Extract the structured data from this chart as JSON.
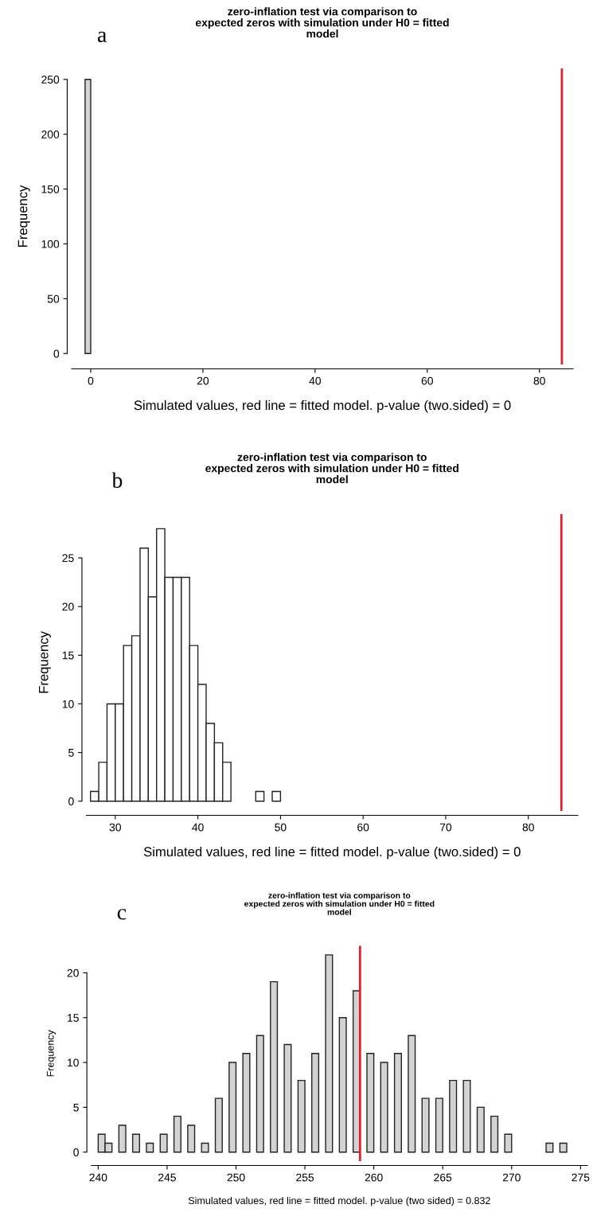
{
  "chart_data": [
    {
      "type": "histogram",
      "title": "zero-inflation test via comparison to\nexpected zeros with simulation under H0 = fitted\nmodel",
      "xlabel": "Simulated values, red line = fitted model. p-value (two.sided) = 0",
      "ylabel": "Frequency",
      "annotations": [
        "a"
      ],
      "bins": [
        -1,
        0
      ],
      "values": [
        250
      ],
      "color": "#d3d3d3",
      "xlim": [
        -3.4,
        86
      ],
      "xticks": [
        0,
        20,
        40,
        60,
        80
      ],
      "ylim": [
        -10,
        260
      ],
      "yticks": [
        0,
        50,
        100,
        150,
        200,
        250
      ],
      "grid": false,
      "ref_lines": [
        {
          "axis": "x",
          "value": 84,
          "color": "#e0202a"
        }
      ]
    },
    {
      "type": "histogram",
      "title": "zero-inflation test via comparison to\nexpected zeros with simulation under H0 = fitted\nmodel",
      "xlabel": "Simulated values, red line = fitted model. p-value (two.sided) = 0",
      "ylabel": "Frequency",
      "annotations": [
        "b"
      ],
      "bins": [
        27,
        28,
        29,
        30,
        31,
        32,
        33,
        34,
        35,
        36,
        37,
        38,
        39,
        40,
        41,
        42,
        43,
        44,
        45,
        46,
        47,
        48,
        49,
        50
      ],
      "values": [
        1,
        4,
        10,
        10,
        16,
        17,
        26,
        21,
        28,
        23,
        23,
        23,
        16,
        12,
        8,
        6,
        4,
        0,
        0,
        0,
        1,
        0,
        1
      ],
      "color": "#ffffff",
      "xlim": [
        26.5,
        86
      ],
      "xticks": [
        30,
        40,
        50,
        60,
        70,
        80
      ],
      "ylim": [
        -1,
        29.5
      ],
      "yticks": [
        0,
        5,
        10,
        15,
        20,
        25
      ],
      "grid": false,
      "ref_lines": [
        {
          "axis": "x",
          "value": 84,
          "color": "#e0202a"
        }
      ]
    },
    {
      "type": "histogram",
      "title": "zero-inflation test via comparison to\nexpected zeros with simulation under H0 = fitted\nmodel",
      "xlabel": "Simulated values, red line = fitted model. p-value (two sided) = 0.832",
      "ylabel": "Frequency",
      "annotations": [
        "c"
      ],
      "bins": [
        240,
        240.5,
        241,
        241.5,
        242,
        242.5,
        243,
        243.5,
        244,
        244.5,
        245,
        245.5,
        246,
        246.5,
        247,
        247.5,
        248,
        248.5,
        249,
        249.5,
        250,
        250.5,
        251,
        251.5,
        252,
        252.5,
        253,
        253.5,
        254,
        254.5,
        255,
        255.5,
        256,
        256.5,
        257,
        257.5,
        258,
        258.5,
        259,
        259.5,
        260,
        260.5,
        261,
        261.5,
        262,
        262.5,
        263,
        263.5,
        264,
        264.5,
        265,
        265.5,
        266,
        266.5,
        267,
        267.5,
        268,
        268.5,
        269,
        269.5,
        270,
        270.5,
        271,
        271.5,
        272,
        272.5,
        273,
        273.5,
        274
      ],
      "values": [
        2,
        1,
        0,
        3,
        0,
        2,
        0,
        1,
        0,
        2,
        0,
        4,
        0,
        3,
        0,
        1,
        0,
        6,
        0,
        10,
        0,
        11,
        0,
        13,
        0,
        19,
        0,
        12,
        0,
        8,
        0,
        11,
        0,
        22,
        0,
        15,
        0,
        18,
        0,
        11,
        0,
        10,
        0,
        11,
        0,
        13,
        0,
        6,
        0,
        6,
        0,
        8,
        0,
        8,
        0,
        5,
        0,
        4,
        0,
        2,
        0,
        0,
        0,
        0,
        0,
        1,
        0,
        1
      ],
      "color": "#d3d3d3",
      "xlim": [
        239.5,
        275.5
      ],
      "xticks": [
        240,
        245,
        250,
        255,
        260,
        265,
        270,
        275
      ],
      "ylim": [
        -1,
        23
      ],
      "yticks": [
        0,
        5,
        10,
        15,
        20
      ],
      "grid": false,
      "ref_lines": [
        {
          "axis": "x",
          "value": 259,
          "color": "#e0202a"
        }
      ]
    }
  ]
}
